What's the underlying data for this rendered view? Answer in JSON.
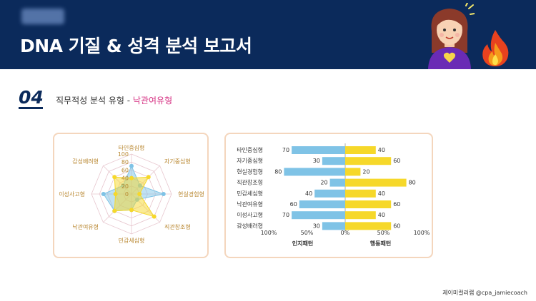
{
  "header": {
    "title": "DNA 기질 & 성격 분석 보고서"
  },
  "section": {
    "number": "04",
    "title_prefix": "직무적성 분석 유형 - ",
    "title_highlight": "낙관여유형"
  },
  "footer": {
    "credit": "제이미컬러랩 @cpa_jamiecoach"
  },
  "colors": {
    "header_bg": "#0b2a5b",
    "blue": "#7fc3e6",
    "yellow": "#f6d82a",
    "highlight": "#d63384",
    "card_border": "#f4d6bd"
  },
  "chart_data": [
    {
      "type": "radar",
      "axes": [
        "타인중심형",
        "자기중심형",
        "현실경험형",
        "직관창조형",
        "민감세심형",
        "낙관여유형",
        "이성사고형",
        "감성배려형"
      ],
      "ticks": [
        0,
        20,
        40,
        60,
        80,
        100
      ],
      "range": [
        0,
        100
      ],
      "series": [
        {
          "color": "#7fc3e6",
          "values": [
            70,
            30,
            80,
            20,
            40,
            60,
            70,
            30
          ]
        },
        {
          "color": "#f6d82a",
          "values": [
            40,
            60,
            20,
            80,
            40,
            60,
            40,
            60
          ]
        }
      ]
    },
    {
      "type": "bar",
      "orientation": "horizontal-diverging",
      "categories": [
        "타인중심형",
        "자기중심형",
        "현실경험형",
        "직관창조형",
        "민감세심형",
        "낙관여유형",
        "이성사고형",
        "감성배려형"
      ],
      "series": [
        {
          "name": "인지패턴",
          "color": "#7fc3e6",
          "side": "left",
          "values": [
            70,
            30,
            80,
            20,
            40,
            60,
            70,
            30
          ]
        },
        {
          "name": "행동패턴",
          "color": "#f6d82a",
          "side": "right",
          "values": [
            40,
            60,
            20,
            80,
            40,
            60,
            40,
            60
          ]
        }
      ],
      "x_ticks": [
        "100%",
        "50%",
        "0%",
        "50%",
        "100%"
      ],
      "xlim": [
        -100,
        100
      ]
    }
  ]
}
